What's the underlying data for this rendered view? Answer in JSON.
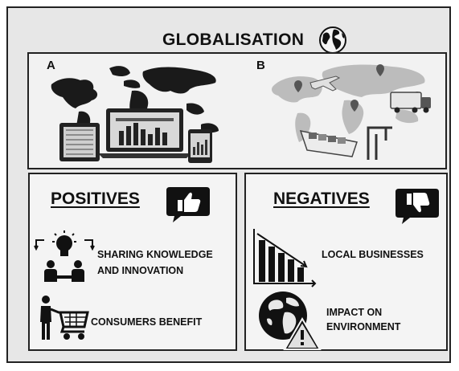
{
  "title": "GLOBALISATION",
  "map_panel": {
    "label_a": "A",
    "label_b": "B"
  },
  "positives": {
    "heading": "POSITIVES",
    "items": [
      {
        "line1": "SHARING KNOWLEDGE",
        "line2": "AND INNOVATION",
        "icon": "lightbulb-collaboration-icon"
      },
      {
        "line1": "CONSUMERS BENEFIT",
        "icon": "shopping-cart-icon"
      }
    ],
    "icon": "thumbs-up-icon"
  },
  "negatives": {
    "heading": "NEGATIVES",
    "items": [
      {
        "line1": "LOCAL BUSINESSES",
        "icon": "declining-bar-chart-icon"
      },
      {
        "line1": "IMPACT ON",
        "line2": "ENVIRONMENT",
        "icon": "globe-warning-icon"
      }
    ],
    "icon": "thumbs-down-icon"
  },
  "colors": {
    "frame_bg": "#e7e7e7",
    "border": "#222222",
    "ink": "#111111"
  }
}
